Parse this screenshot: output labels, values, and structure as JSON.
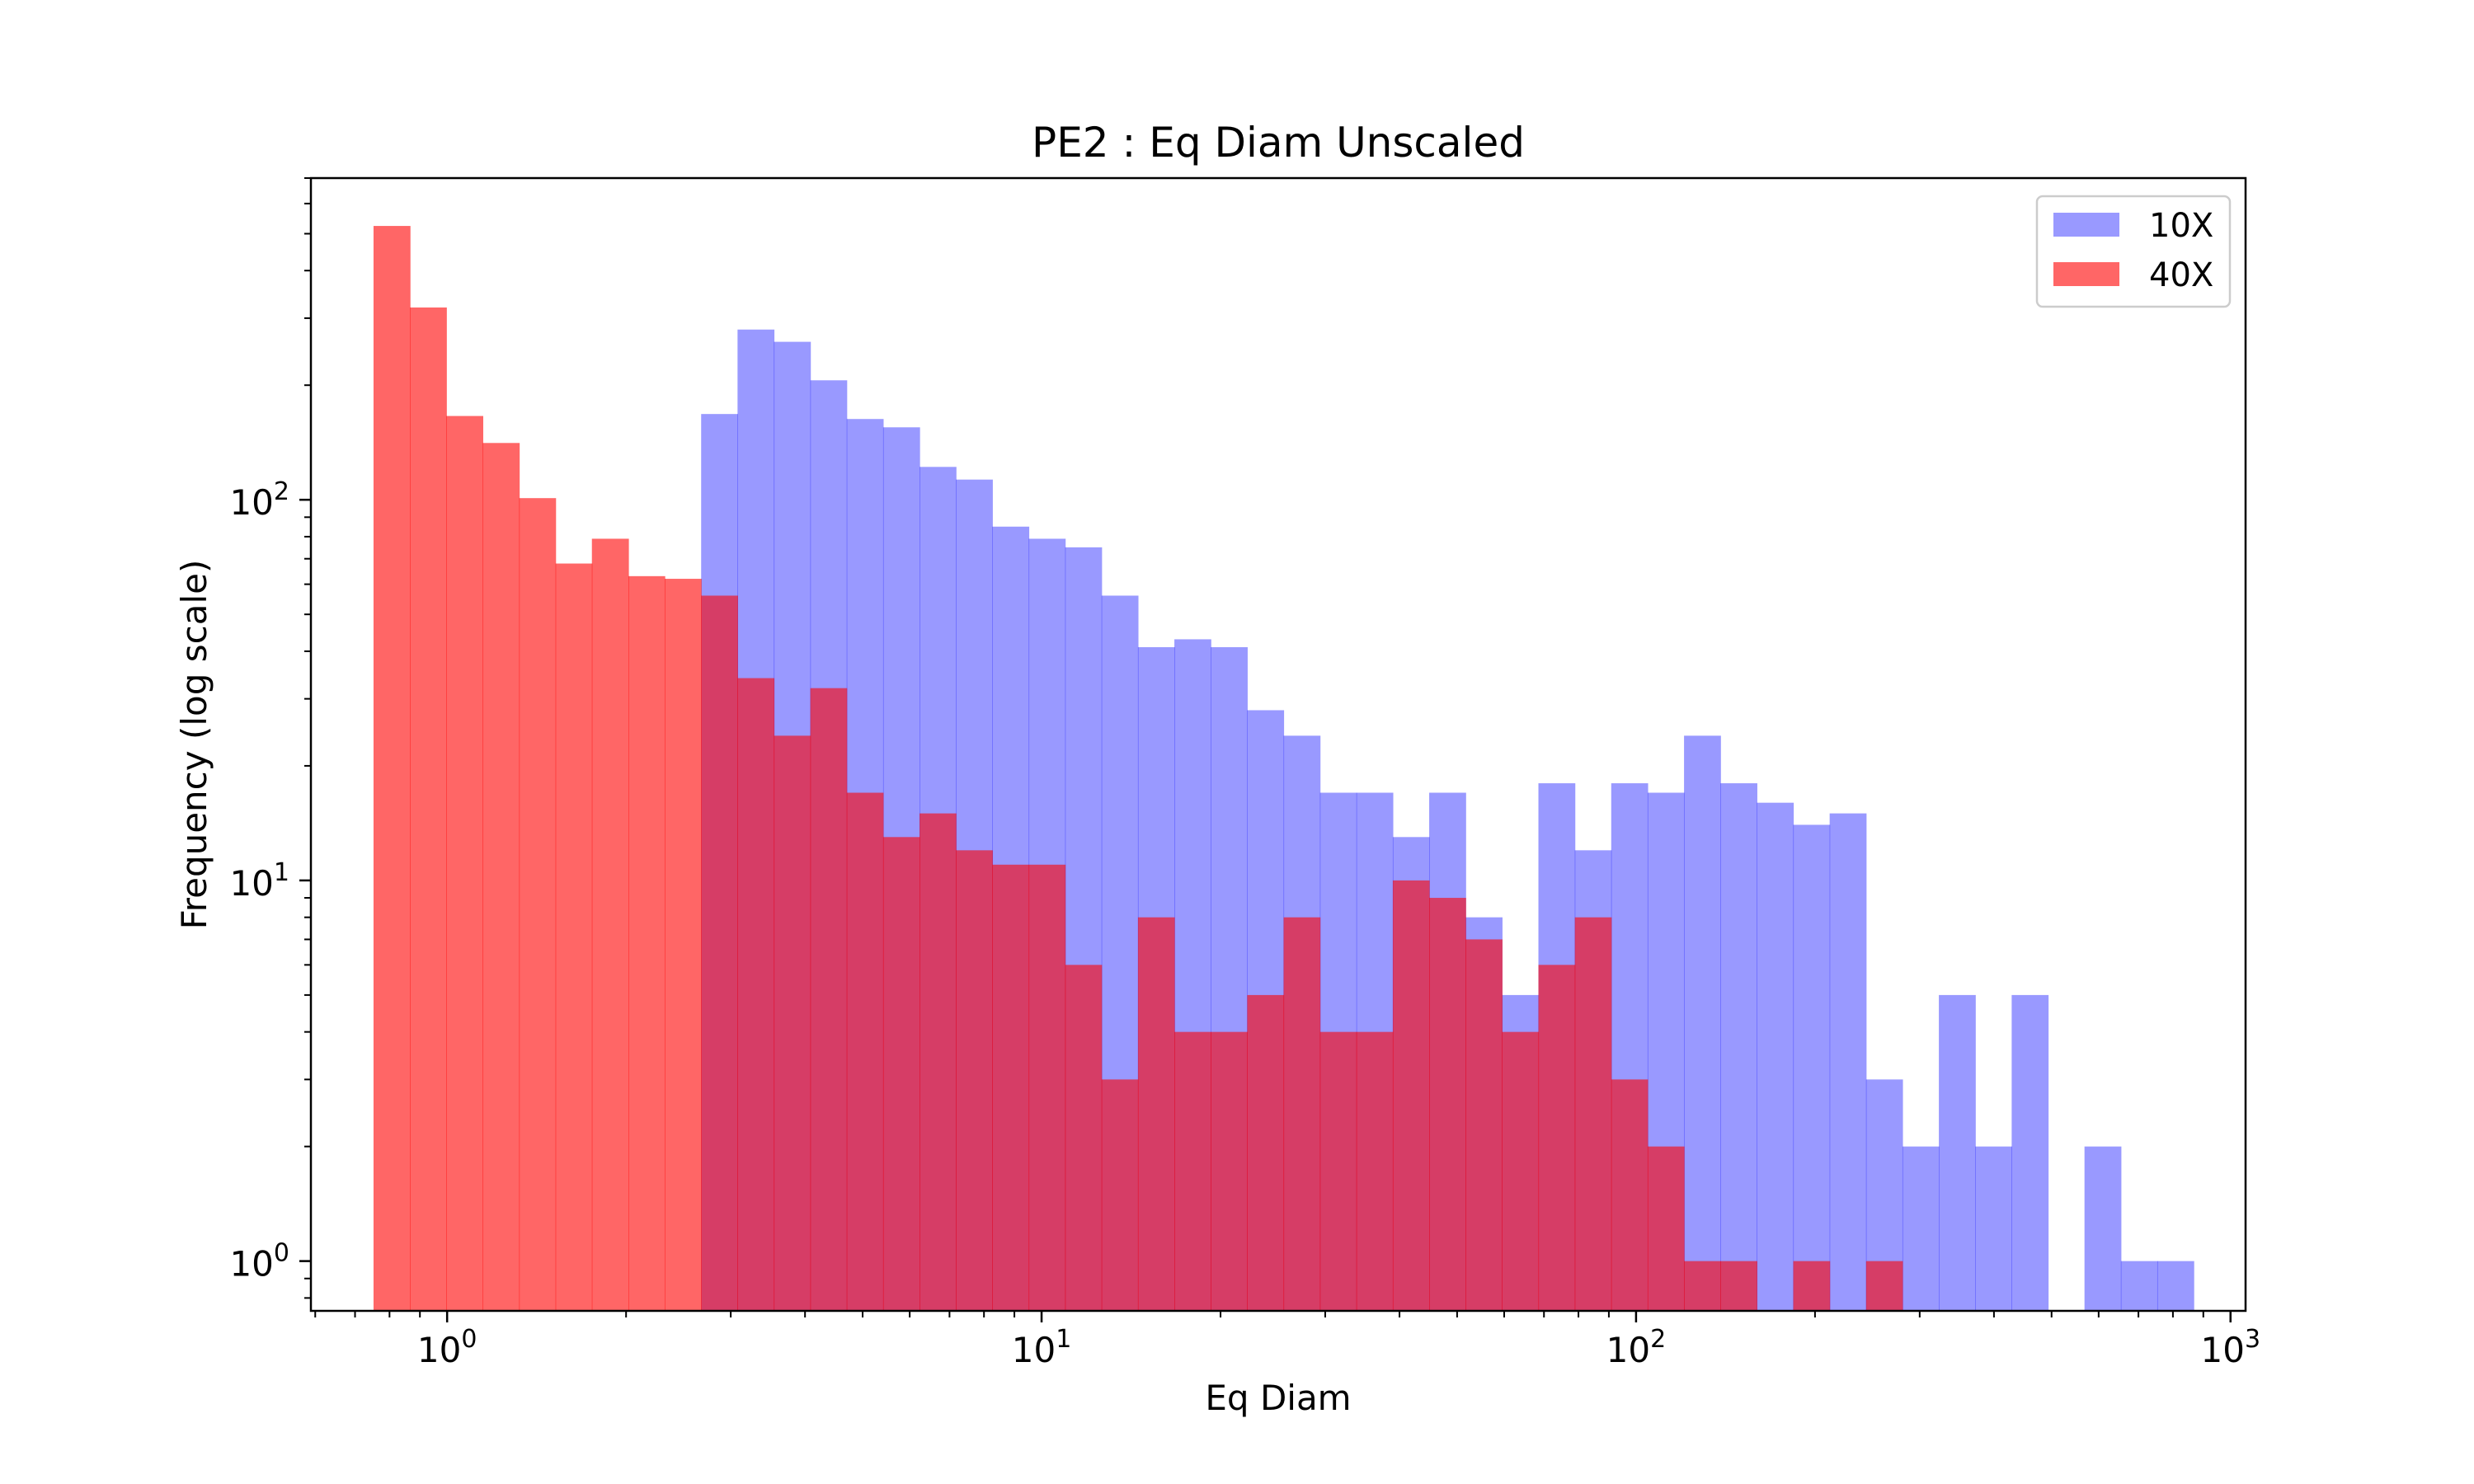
{
  "chart_data": {
    "type": "bar",
    "title": "PE2 : Eq Diam Unscaled",
    "xlabel": "Eq Diam",
    "ylabel": "Frequency (log scale)",
    "xscale": "log",
    "yscale": "log",
    "xlim": [
      0.59,
      1060
    ],
    "ylim": [
      0.74,
      700
    ],
    "xticks": [
      "10^0",
      "10^1",
      "10^2",
      "10^3"
    ],
    "yticks": [
      "10^0",
      "10^1",
      "10^2"
    ],
    "legend": {
      "placement": "top-right"
    },
    "bin_edges": [
      0.752,
      0.866,
      0.997,
      1.148,
      1.322,
      1.522,
      1.752,
      2.018,
      2.323,
      2.675,
      3.08,
      3.546,
      4.083,
      4.701,
      5.413,
      6.233,
      7.177,
      8.263,
      9.515,
      10.956,
      12.615,
      14.525,
      16.725,
      19.258,
      22.174,
      25.532,
      29.398,
      33.85,
      38.976,
      44.878,
      51.674,
      59.499,
      68.51,
      78.884,
      90.83,
      104.584,
      120.422,
      138.658,
      159.656,
      183.833,
      211.671,
      243.725,
      280.633,
      323.131,
      372.065,
      428.408,
      493.284,
      567.984,
      653.996,
      753.032,
      867.066
    ],
    "series": [
      {
        "name": "10X",
        "color": "#9999ff",
        "values": [
          0,
          0,
          0,
          0,
          0,
          0,
          0,
          0,
          0,
          168,
          280,
          260,
          206,
          163,
          155,
          122,
          113,
          85,
          79,
          75,
          56,
          41,
          43,
          41,
          28,
          24,
          17,
          17,
          13,
          17,
          8,
          5,
          18,
          12,
          18,
          17,
          24,
          18,
          16,
          14,
          15,
          3,
          2,
          5,
          2,
          5,
          0,
          2,
          1,
          1
        ]
      },
      {
        "name": "40X",
        "color": "#ff6666",
        "values": [
          524,
          320,
          166,
          141,
          101,
          68,
          79,
          63,
          62,
          56,
          34,
          24,
          32,
          17,
          13,
          15,
          12,
          11,
          11,
          6,
          3,
          8,
          4,
          4,
          5,
          8,
          4,
          4,
          10,
          9,
          7,
          4,
          6,
          8,
          3,
          2,
          1,
          1,
          0,
          1,
          0,
          1,
          0,
          0,
          0,
          0,
          0,
          0,
          0,
          0
        ]
      }
    ]
  }
}
